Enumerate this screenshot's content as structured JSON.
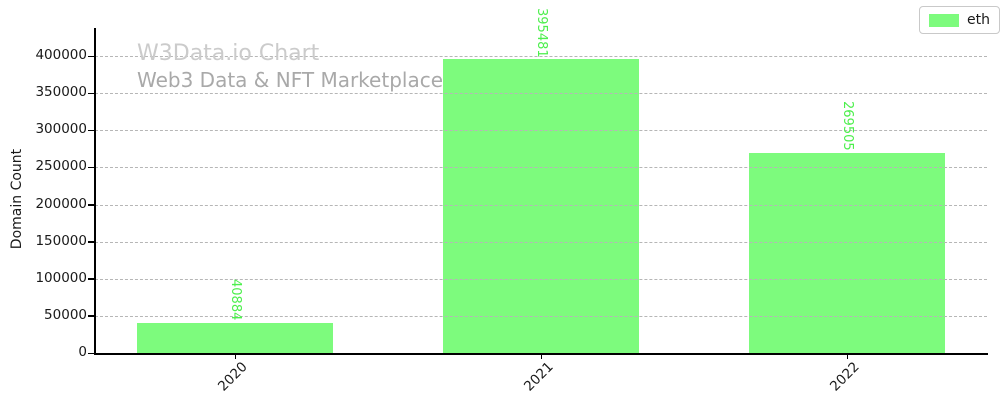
{
  "watermark": {
    "title": "W3Data.io Chart",
    "subtitle": "Web3 Data & NFT Marketplace"
  },
  "legend": {
    "items": [
      {
        "label": "eth",
        "color": "#7dfb7d"
      }
    ]
  },
  "chart_data": {
    "type": "bar",
    "categories": [
      "2020",
      "2021",
      "2022"
    ],
    "series": [
      {
        "name": "eth",
        "values": [
          40884,
          395481,
          269505
        ],
        "color": "#7dfb7d"
      }
    ],
    "title": "",
    "xlabel": "",
    "ylabel": "Domain Count",
    "ylim": [
      0,
      437000
    ],
    "yticks": [
      0,
      50000,
      100000,
      150000,
      200000,
      250000,
      300000,
      350000,
      400000
    ],
    "grid": "horizontal-dashed",
    "gridline_color": "#b6b6b6",
    "legend_position": "upper right",
    "bar_label_color": "#4cef4c",
    "bar_label_rotation": 90,
    "x_tick_rotation": 45
  }
}
